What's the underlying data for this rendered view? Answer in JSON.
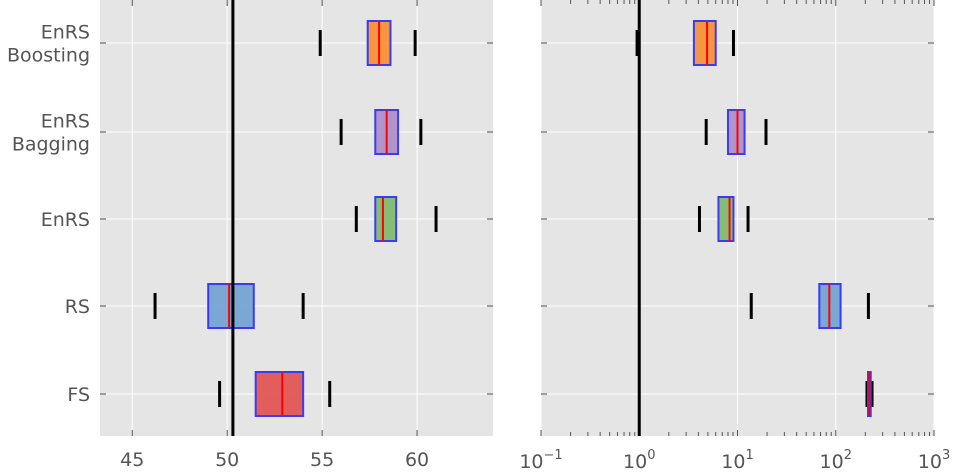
{
  "chart_data": [
    {
      "type": "box",
      "title": "",
      "xlabel": "",
      "ylabel": "",
      "xscale": "linear",
      "xlim": [
        43.3,
        64.0
      ],
      "xticks": [
        45,
        50,
        55,
        60
      ],
      "xtick_labels": [
        "45",
        "50",
        "55",
        "60"
      ],
      "reference_line": 50.3,
      "grid": true,
      "categories": [
        "EnRS Boosting",
        "EnRS Bagging",
        "EnRS",
        "RS",
        "FS"
      ],
      "category_lines": [
        [
          "EnRS",
          "Boosting"
        ],
        [
          "EnRS",
          "Bagging"
        ],
        [
          "EnRS"
        ],
        [
          "RS"
        ],
        [
          "FS"
        ]
      ],
      "boxes": [
        {
          "name": "EnRS Boosting",
          "whisker_low": 54.9,
          "q1": 57.4,
          "median": 58.0,
          "q3": 58.6,
          "whisker_high": 59.9,
          "color": "#fa8c2e"
        },
        {
          "name": "EnRS Bagging",
          "whisker_low": 56.0,
          "q1": 57.8,
          "median": 58.4,
          "q3": 59.0,
          "whisker_high": 60.2,
          "color": "#a88cc8"
        },
        {
          "name": "EnRS",
          "whisker_low": 56.8,
          "q1": 57.8,
          "median": 58.2,
          "q3": 58.9,
          "whisker_high": 61.0,
          "color": "#7ab86a"
        },
        {
          "name": "RS",
          "whisker_low": 46.2,
          "q1": 49.0,
          "median": 50.1,
          "q3": 51.4,
          "whisker_high": 54.0,
          "color": "#6ea0d0"
        },
        {
          "name": "FS",
          "whisker_low": 49.6,
          "q1": 51.5,
          "median": 52.9,
          "q3": 54.0,
          "whisker_high": 55.4,
          "color": "#e34e4e"
        }
      ]
    },
    {
      "type": "box",
      "title": "",
      "xlabel": "",
      "ylabel": "",
      "xscale": "log",
      "xlim": [
        0.1,
        1000
      ],
      "xticks": [
        0.1,
        1,
        10,
        100,
        1000
      ],
      "xtick_labels": [
        {
          "base": "10",
          "exp": "−1"
        },
        {
          "base": "10",
          "exp": "0"
        },
        {
          "base": "10",
          "exp": "1"
        },
        {
          "base": "10",
          "exp": "2"
        },
        {
          "base": "10",
          "exp": "3"
        }
      ],
      "reference_line": 1.0,
      "grid": true,
      "categories": [
        "EnRS Boosting",
        "EnRS Bagging",
        "EnRS",
        "RS",
        "FS"
      ],
      "boxes": [
        {
          "name": "EnRS Boosting",
          "whisker_low": 0.95,
          "q1": 3.6,
          "median": 4.9,
          "q3": 6.0,
          "whisker_high": 9.1,
          "color": "#fa8c2e"
        },
        {
          "name": "EnRS Bagging",
          "whisker_low": 4.8,
          "q1": 8.0,
          "median": 10.0,
          "q3": 11.8,
          "whisker_high": 19.5,
          "color": "#a88cc8"
        },
        {
          "name": "EnRS",
          "whisker_low": 4.1,
          "q1": 6.4,
          "median": 8.3,
          "q3": 9.1,
          "whisker_high": 12.8,
          "color": "#7ab86a"
        },
        {
          "name": "RS",
          "whisker_low": 13.8,
          "q1": 68.0,
          "median": 86.0,
          "q3": 112.0,
          "whisker_high": 215.0,
          "color": "#6ea0d0"
        },
        {
          "name": "FS",
          "whisker_low": 208.0,
          "q1": 213.0,
          "median": 220.0,
          "q3": 227.0,
          "whisker_high": 234.0,
          "color": "#e34e4e"
        }
      ]
    }
  ]
}
